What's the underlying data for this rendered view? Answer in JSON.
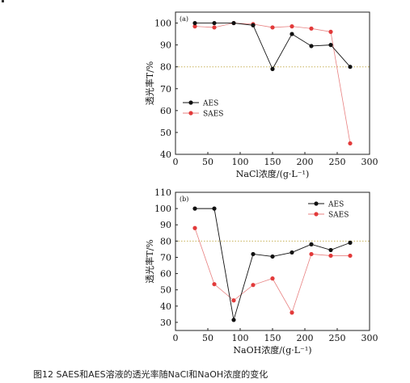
{
  "caption": "图12 SAES和AES溶液的透光率随NaCl和NaOH浓度的变化",
  "colors": {
    "aes": "#111111",
    "saes": "#e23a3a",
    "saes_line": "#e88080",
    "ref_line": "#c8b25a",
    "axis": "#222222"
  },
  "chart_data": [
    {
      "type": "line",
      "panel_label": "(a)",
      "xlabel": "NaCl浓度/(g·L⁻¹)",
      "ylabel": "透光率T/%",
      "xlim": [
        0,
        300
      ],
      "ylim": [
        40,
        105
      ],
      "xticks": [
        0,
        50,
        100,
        150,
        200,
        250,
        300
      ],
      "yticks": [
        40,
        50,
        60,
        70,
        80,
        90,
        100
      ],
      "reference_line": 80,
      "legend_position": "left",
      "series": [
        {
          "name": "AES",
          "x": [
            30,
            60,
            90,
            120,
            150,
            180,
            210,
            240,
            270
          ],
          "y": [
            100,
            100,
            100,
            99,
            79,
            95,
            89.5,
            90,
            80
          ]
        },
        {
          "name": "SAES",
          "x": [
            30,
            60,
            90,
            120,
            150,
            180,
            210,
            240,
            270
          ],
          "y": [
            98.5,
            98,
            100,
            99.5,
            98,
            98.5,
            97.5,
            96,
            45
          ]
        }
      ]
    },
    {
      "type": "line",
      "panel_label": "(b)",
      "xlabel": "NaOH浓度/(g·L⁻¹)",
      "ylabel": "透光率T/%",
      "xlim": [
        0,
        300
      ],
      "ylim": [
        25,
        110
      ],
      "xticks": [
        0,
        50,
        100,
        150,
        200,
        250,
        300
      ],
      "yticks": [
        30,
        40,
        50,
        60,
        70,
        80,
        90,
        100,
        110
      ],
      "reference_line": 80,
      "legend_position": "top-right",
      "series": [
        {
          "name": "AES",
          "x": [
            30,
            60,
            90,
            120,
            150,
            180,
            210,
            240,
            270
          ],
          "y": [
            100,
            100,
            31.5,
            72,
            70.5,
            73,
            78,
            74.5,
            79
          ]
        },
        {
          "name": "SAES",
          "x": [
            30,
            60,
            90,
            120,
            150,
            180,
            210,
            240,
            270
          ],
          "y": [
            88,
            53.5,
            43.5,
            53,
            57,
            36,
            72,
            71,
            71
          ]
        }
      ]
    }
  ]
}
